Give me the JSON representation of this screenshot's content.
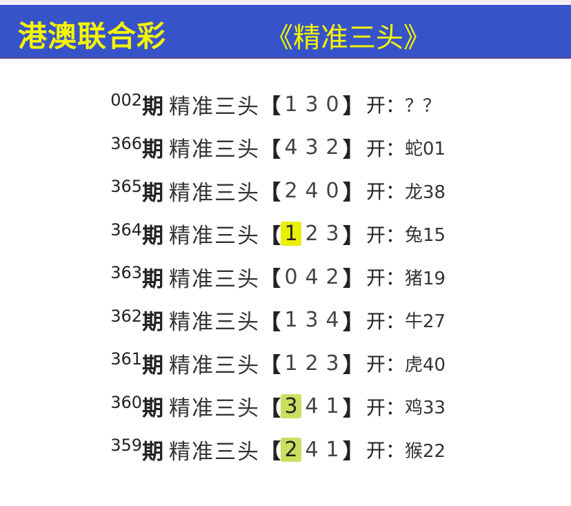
{
  "header": {
    "title": "港澳联合彩",
    "subtitle": "《精准三头》",
    "bg_color": "#3653c9",
    "text_color": "#f5f500"
  },
  "rows": [
    {
      "issue": "002",
      "qi": "期",
      "label": "精准三头",
      "digits": [
        "1",
        "3",
        "0"
      ],
      "open": "开：",
      "result": "？？",
      "highlight": null
    },
    {
      "issue": "366",
      "qi": "期",
      "label": "精准三头",
      "digits": [
        "4",
        "3",
        "2"
      ],
      "open": "开：",
      "result": "蛇01",
      "highlight": null
    },
    {
      "issue": "365",
      "qi": "期",
      "label": "精准三头",
      "digits": [
        "2",
        "4",
        "0"
      ],
      "open": "开：",
      "result": "龙38",
      "highlight": null
    },
    {
      "issue": "364",
      "qi": "期",
      "label": "精准三头",
      "digits": [
        "1",
        "2",
        "3"
      ],
      "open": "开：",
      "result": "兔15",
      "highlight": 0
    },
    {
      "issue": "363",
      "qi": "期",
      "label": "精准三头",
      "digits": [
        "0",
        "4",
        "2"
      ],
      "open": "开：",
      "result": "猪19",
      "highlight": null
    },
    {
      "issue": "362",
      "qi": "期",
      "label": "精准三头",
      "digits": [
        "1",
        "3",
        "4"
      ],
      "open": "开：",
      "result": "牛27",
      "highlight": null
    },
    {
      "issue": "361",
      "qi": "期",
      "label": "精准三头",
      "digits": [
        "1",
        "2",
        "3"
      ],
      "open": "开：",
      "result": "虎40",
      "highlight": null
    },
    {
      "issue": "360",
      "qi": "期",
      "label": "精准三头",
      "digits": [
        "3",
        "4",
        "1"
      ],
      "open": "开：",
      "result": "鸡33",
      "highlight": 0
    },
    {
      "issue": "359",
      "qi": "期",
      "label": "精准三头",
      "digits": [
        "2",
        "4",
        "1"
      ],
      "open": "开：",
      "result": "猴22",
      "highlight": 0
    }
  ],
  "brackets": {
    "open": "【",
    "close": "】"
  }
}
